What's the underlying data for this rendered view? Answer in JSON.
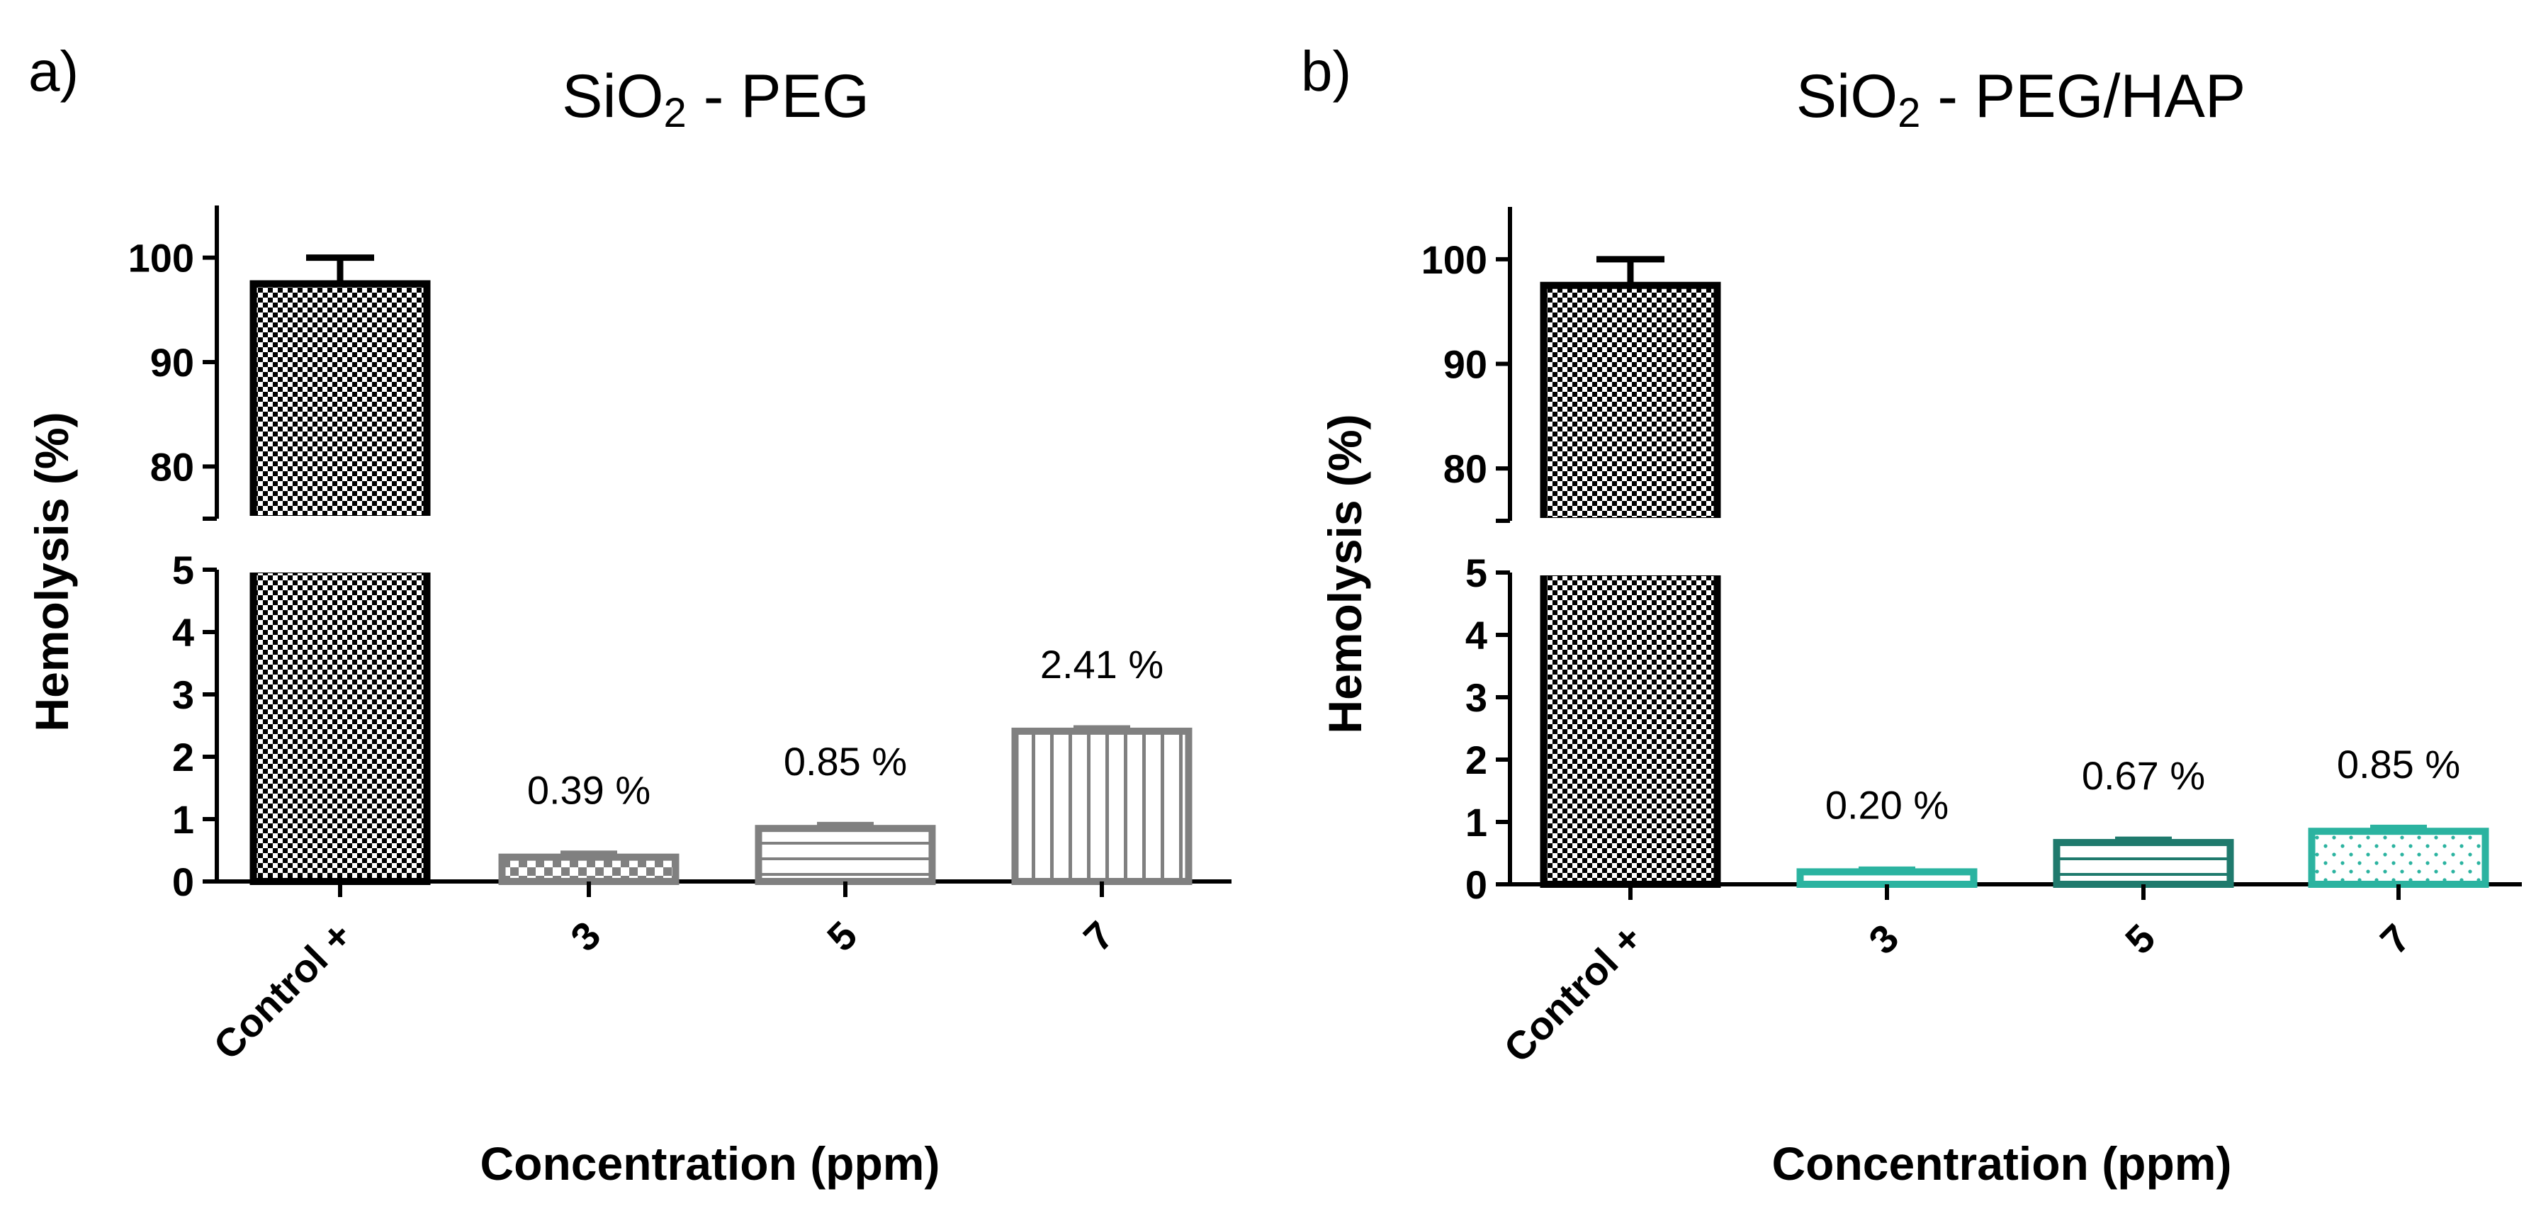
{
  "chart_data": [
    {
      "type": "bar",
      "panel_letter": "a)",
      "title_main": "SiO",
      "title_sub": "2",
      "title_rest": " - PEG",
      "xlabel": "Concentration (ppm)",
      "ylabel": "Hemolysis (%)",
      "categories": [
        "Control +",
        "3",
        "5",
        "7"
      ],
      "values": [
        97.5,
        0.39,
        0.85,
        2.41
      ],
      "error": [
        2.5,
        0.06,
        0.06,
        0.05
      ],
      "data_labels": [
        "",
        "0.39 %",
        "0.85 %",
        "2.41 %"
      ],
      "colors": [
        "#000000",
        "#808080",
        "#808080",
        "#808080"
      ],
      "patterns": [
        "checker",
        "checker",
        "hlines",
        "vlines"
      ],
      "y_upper_ticks": [
        "80",
        "90",
        "100"
      ],
      "y_lower_ticks": [
        "0",
        "1",
        "2",
        "3",
        "4",
        "5"
      ],
      "ylim_upper": [
        75,
        105
      ],
      "ylim_lower": [
        0,
        5
      ],
      "grid": false,
      "legend": "none"
    },
    {
      "type": "bar",
      "panel_letter": "b)",
      "title_main": "SiO",
      "title_sub": "2",
      "title_rest": " - PEG/HAP",
      "xlabel": "Concentration (ppm)",
      "ylabel": "Hemolysis (%)",
      "categories": [
        "Control +",
        "3",
        "5",
        "7"
      ],
      "values": [
        97.5,
        0.2,
        0.67,
        0.85
      ],
      "error": [
        2.5,
        0.04,
        0.05,
        0.06
      ],
      "data_labels": [
        "",
        "0.20 %",
        "0.67 %",
        "0.85 %"
      ],
      "colors": [
        "#000000",
        "#2bb3a0",
        "#1f7a6d",
        "#2bb3a0"
      ],
      "patterns": [
        "checker",
        "dashes",
        "hlines",
        "dots"
      ],
      "y_upper_ticks": [
        "80",
        "90",
        "100"
      ],
      "y_lower_ticks": [
        "0",
        "1",
        "2",
        "3",
        "4",
        "5"
      ],
      "ylim_upper": [
        75,
        105
      ],
      "ylim_lower": [
        0,
        5
      ],
      "grid": false,
      "legend": "none"
    }
  ]
}
